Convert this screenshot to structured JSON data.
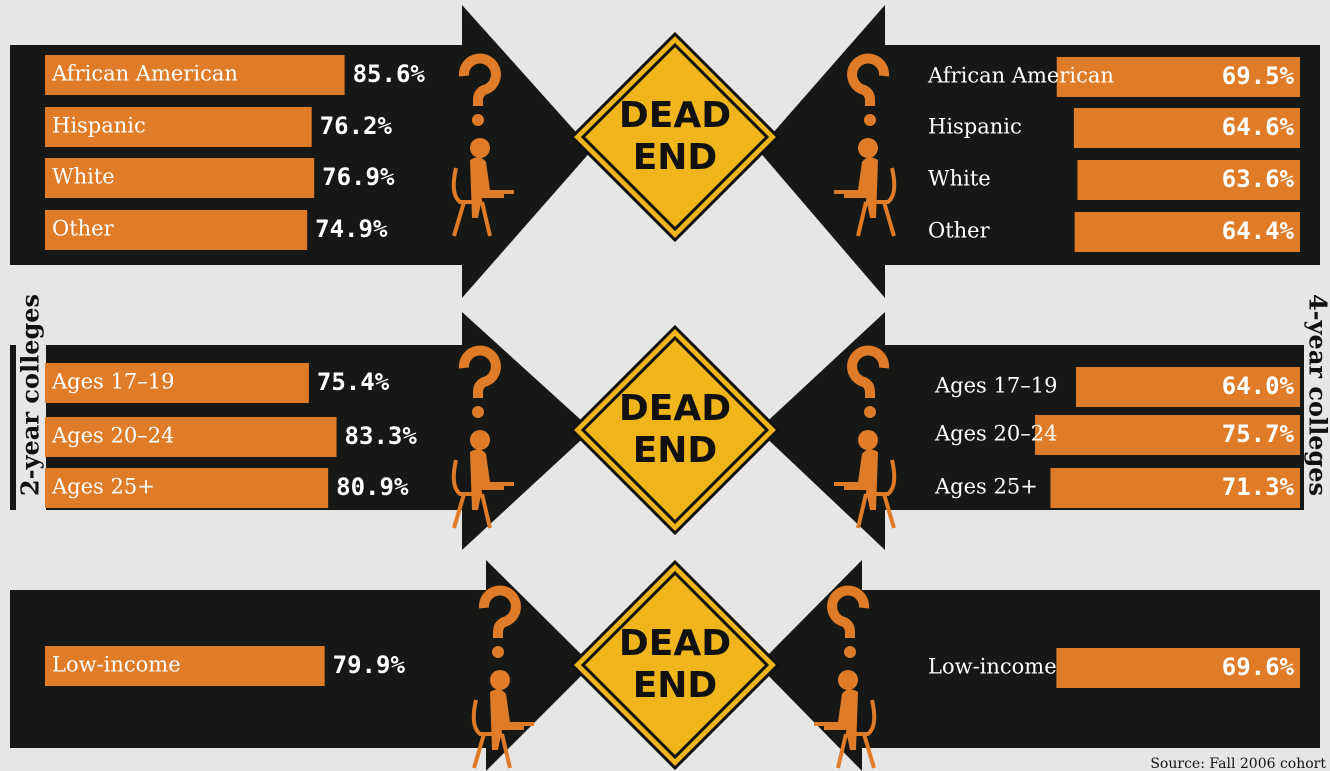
{
  "chart_data": [
    {
      "type": "bar",
      "title": "2-year colleges",
      "categories": [
        "African American",
        "Hispanic",
        "White",
        "Other",
        "Ages 17–19",
        "Ages 20–24",
        "Ages 25+",
        "Low-income"
      ],
      "values": [
        85.6,
        76.2,
        76.9,
        74.9,
        75.4,
        83.3,
        80.9,
        79.9
      ],
      "value_labels": [
        "85.6%",
        "76.2%",
        "76.9%",
        "74.9%",
        "75.4%",
        "83.3%",
        "80.9%",
        "79.9%"
      ],
      "color": "#e07b27"
    },
    {
      "type": "bar",
      "title": "4-year colleges",
      "categories": [
        "African American",
        "Hispanic",
        "White",
        "Other",
        "Ages 17–19",
        "Ages 20–24",
        "Ages 25+",
        "Low-income"
      ],
      "values": [
        69.5,
        64.6,
        63.6,
        64.4,
        64.0,
        75.7,
        71.3,
        69.6
      ],
      "value_labels": [
        "69.5%",
        "64.6%",
        "63.6%",
        "64.4%",
        "64.0%",
        "75.7%",
        "71.3%",
        "69.6%"
      ],
      "color": "#e07b27"
    }
  ],
  "signs": [
    [
      "DEAD",
      "END"
    ],
    [
      "DEAD",
      "END"
    ],
    [
      "DEAD",
      "END"
    ]
  ],
  "source": "Source: Fall 2006 cohort"
}
